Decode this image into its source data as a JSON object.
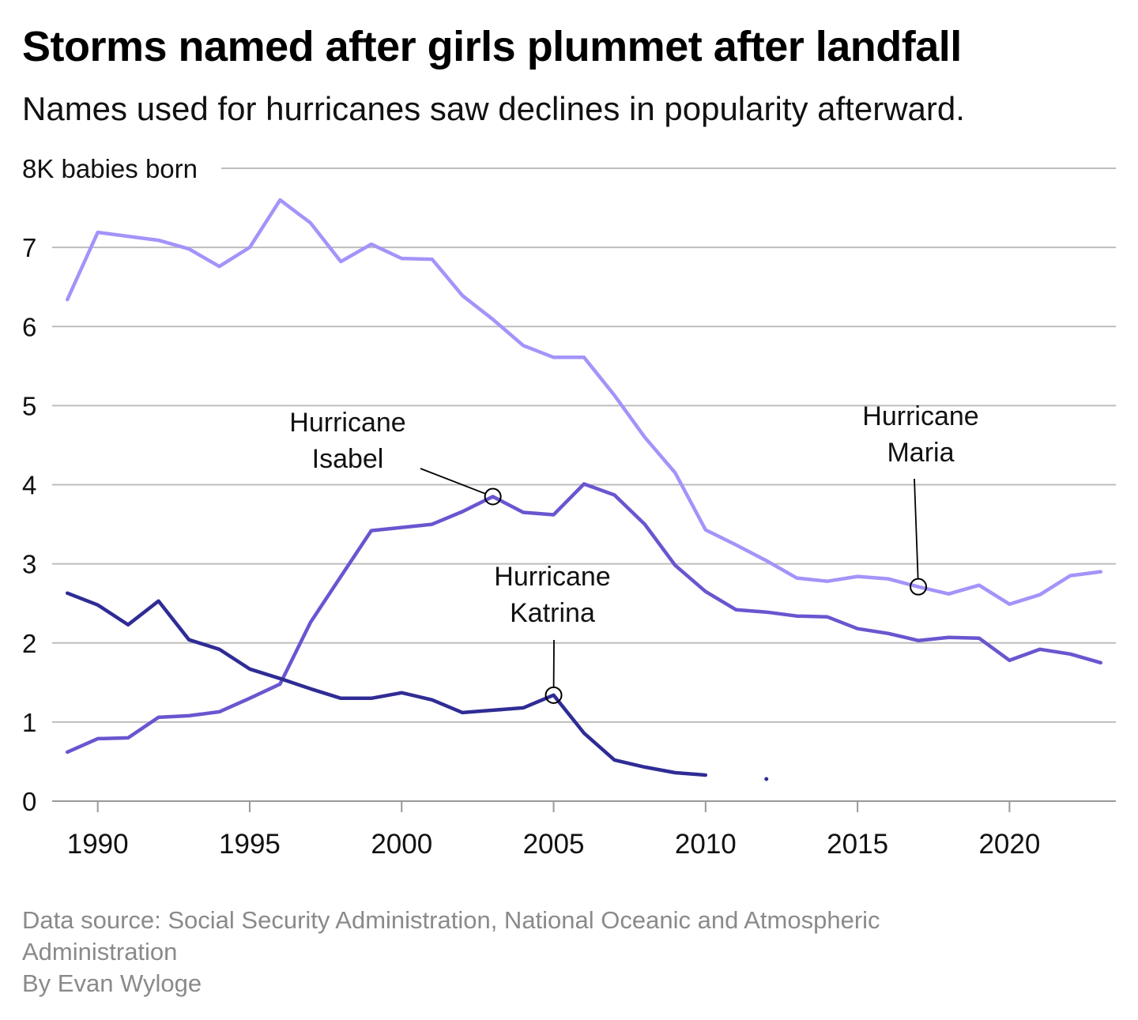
{
  "title": "Storms named after girls plummet after landfall",
  "subtitle": "Names used for hurricanes saw declines in popularity afterward.",
  "footer": {
    "source": "Data source: Social Security Administration, National Oceanic and Atmospheric Administration",
    "byline": "By Evan Wyloge"
  },
  "colors": {
    "maria": "#a294f9",
    "isabel": "#6a55d0",
    "katrina": "#2f2c95",
    "grid": "#bdbdbd",
    "axis": "#999999"
  },
  "chart_data": {
    "type": "line",
    "title": "Storms named after girls plummet after landfall",
    "ylabel": "8K babies born",
    "ylim": [
      0,
      8
    ],
    "xlim": [
      1988.5,
      2023.5
    ],
    "yticks": [
      {
        "value": 8,
        "label": "8K babies born"
      },
      {
        "value": 7,
        "label": "7"
      },
      {
        "value": 6,
        "label": "6"
      },
      {
        "value": 5,
        "label": "5"
      },
      {
        "value": 4,
        "label": "4"
      },
      {
        "value": 3,
        "label": "3"
      },
      {
        "value": 2,
        "label": "2"
      },
      {
        "value": 1,
        "label": "1"
      },
      {
        "value": 0,
        "label": "0"
      }
    ],
    "xticks": [
      {
        "value": 1990,
        "label": "1990"
      },
      {
        "value": 1995,
        "label": "1995"
      },
      {
        "value": 2000,
        "label": "2000"
      },
      {
        "value": 2005,
        "label": "2005"
      },
      {
        "value": 2010,
        "label": "2010"
      },
      {
        "value": 2015,
        "label": "2015"
      },
      {
        "value": 2020,
        "label": "2020"
      }
    ],
    "grid": true,
    "series": [
      {
        "key": "maria",
        "points": [
          [
            1989,
            6.34
          ],
          [
            1990,
            7.19
          ],
          [
            1991,
            7.14
          ],
          [
            1992,
            7.09
          ],
          [
            1993,
            6.98
          ],
          [
            1994,
            6.76
          ],
          [
            1995,
            7.0
          ],
          [
            1996,
            7.6
          ],
          [
            1997,
            7.31
          ],
          [
            1998,
            6.82
          ],
          [
            1999,
            7.04
          ],
          [
            2000,
            6.86
          ],
          [
            2001,
            6.85
          ],
          [
            2002,
            6.39
          ],
          [
            2003,
            6.09
          ],
          [
            2004,
            5.76
          ],
          [
            2005,
            5.61
          ],
          [
            2006,
            5.61
          ],
          [
            2007,
            5.13
          ],
          [
            2008,
            4.6
          ],
          [
            2009,
            4.15
          ],
          [
            2010,
            3.43
          ],
          [
            2011,
            3.24
          ],
          [
            2012,
            3.04
          ],
          [
            2013,
            2.82
          ],
          [
            2014,
            2.78
          ],
          [
            2015,
            2.84
          ],
          [
            2016,
            2.81
          ],
          [
            2017,
            2.71
          ],
          [
            2018,
            2.62
          ],
          [
            2019,
            2.73
          ],
          [
            2020,
            2.49
          ],
          [
            2021,
            2.61
          ],
          [
            2022,
            2.85
          ],
          [
            2023,
            2.9
          ]
        ]
      },
      {
        "key": "isabel",
        "points": [
          [
            1989,
            0.62
          ],
          [
            1990,
            0.79
          ],
          [
            1991,
            0.8
          ],
          [
            1992,
            1.06
          ],
          [
            1993,
            1.08
          ],
          [
            1994,
            1.13
          ],
          [
            1995,
            1.3
          ],
          [
            1996,
            1.48
          ],
          [
            1997,
            2.26
          ],
          [
            1998,
            2.84
          ],
          [
            1999,
            3.42
          ],
          [
            2000,
            3.46
          ],
          [
            2001,
            3.5
          ],
          [
            2002,
            3.66
          ],
          [
            2003,
            3.85
          ],
          [
            2004,
            3.65
          ],
          [
            2005,
            3.62
          ],
          [
            2006,
            4.01
          ],
          [
            2007,
            3.87
          ],
          [
            2008,
            3.5
          ],
          [
            2009,
            2.98
          ],
          [
            2010,
            2.65
          ],
          [
            2011,
            2.42
          ],
          [
            2012,
            2.39
          ],
          [
            2013,
            2.34
          ],
          [
            2014,
            2.33
          ],
          [
            2015,
            2.18
          ],
          [
            2016,
            2.12
          ],
          [
            2017,
            2.03
          ],
          [
            2018,
            2.07
          ],
          [
            2019,
            2.06
          ],
          [
            2020,
            1.78
          ],
          [
            2021,
            1.92
          ],
          [
            2022,
            1.86
          ],
          [
            2023,
            1.75
          ]
        ]
      },
      {
        "key": "katrina",
        "points": [
          [
            1989,
            2.63
          ],
          [
            1990,
            2.48
          ],
          [
            1991,
            2.23
          ],
          [
            1992,
            2.53
          ],
          [
            1993,
            2.04
          ],
          [
            1994,
            1.92
          ],
          [
            1995,
            1.67
          ],
          [
            1996,
            1.55
          ],
          [
            1997,
            1.42
          ],
          [
            1998,
            1.3
          ],
          [
            1999,
            1.3
          ],
          [
            2000,
            1.37
          ],
          [
            2001,
            1.28
          ],
          [
            2002,
            1.12
          ],
          [
            2003,
            1.15
          ],
          [
            2004,
            1.18
          ],
          [
            2005,
            1.34
          ],
          [
            2006,
            0.86
          ],
          [
            2007,
            0.52
          ],
          [
            2008,
            0.43
          ],
          [
            2009,
            0.36
          ],
          [
            2010,
            0.33
          ]
        ],
        "extra_points": [
          [
            2012,
            0.28
          ]
        ]
      }
    ],
    "annotations": [
      {
        "key": "isabel",
        "lines": [
          "Hurricane",
          "Isabel"
        ],
        "x": 2003,
        "y": 3.85
      },
      {
        "key": "katrina",
        "lines": [
          "Hurricane",
          "Katrina"
        ],
        "x": 2005,
        "y": 1.34
      },
      {
        "key": "maria",
        "lines": [
          "Hurricane",
          "Maria"
        ],
        "x": 2017,
        "y": 2.71
      }
    ]
  }
}
